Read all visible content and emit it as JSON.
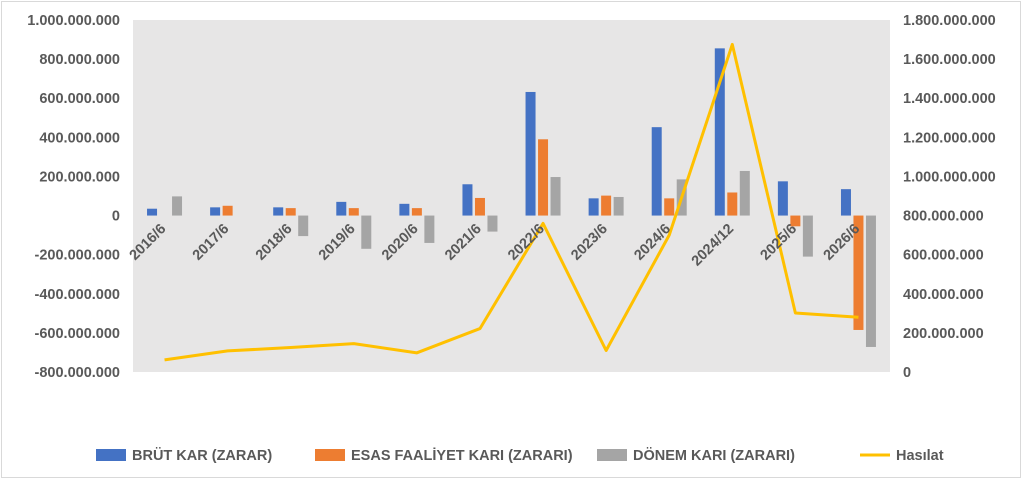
{
  "chart_data": {
    "type": "bar",
    "categories": [
      "2016/6",
      "2017/6",
      "2018/6",
      "2019/6",
      "2020/6",
      "2021/6",
      "2022/6",
      "2023/6",
      "2024/6",
      "2024/12",
      "2025/6",
      "2026/6"
    ],
    "series": [
      {
        "name": "BRÜT KAR (ZARAR)",
        "kind": "bar",
        "axis": "left",
        "color": "#4472c4",
        "values": [
          35000000,
          42000000,
          42000000,
          70000000,
          60000000,
          160000000,
          632000000,
          88000000,
          452000000,
          855000000,
          175000000,
          135000000
        ]
      },
      {
        "name": "ESAS FAALİYET KARI (ZARARI)",
        "kind": "bar",
        "axis": "left",
        "color": "#ed7d31",
        "values": [
          0,
          50000000,
          38000000,
          38000000,
          38000000,
          90000000,
          390000000,
          102000000,
          88000000,
          118000000,
          -55000000,
          -585000000
        ]
      },
      {
        "name": "DÖNEM KARI (ZARARI)",
        "kind": "bar",
        "axis": "left",
        "color": "#a5a5a5",
        "values": [
          98000000,
          0,
          -105000000,
          -170000000,
          -140000000,
          -82000000,
          197000000,
          95000000,
          185000000,
          228000000,
          -210000000,
          -672000000
        ]
      },
      {
        "name": "Hasılat",
        "kind": "line",
        "axis": "right",
        "color": "#ffc000",
        "values": [
          62000000,
          108000000,
          125000000,
          145000000,
          98000000,
          222000000,
          760000000,
          110000000,
          700000000,
          1675000000,
          302000000,
          280000000
        ]
      }
    ],
    "left_axis": {
      "min": -800000000,
      "max": 1000000000,
      "step": 200000000,
      "tick_labels": [
        "-800.000.000",
        "-600.000.000",
        "-400.000.000",
        "-200.000.000",
        "0",
        "200.000.000",
        "400.000.000",
        "600.000.000",
        "800.000.000",
        "1.000.000.000"
      ]
    },
    "right_axis": {
      "min": 0,
      "max": 1800000000,
      "step": 200000000,
      "tick_labels": [
        "0",
        "200.000.000",
        "400.000.000",
        "600.000.000",
        "800.000.000",
        "1.000.000.000",
        "1.200.000.000",
        "1.400.000.000",
        "1.600.000.000",
        "1.800.000.000"
      ]
    },
    "grid": false,
    "legend_position": "bottom",
    "plot_background": "#e7e6e6"
  }
}
